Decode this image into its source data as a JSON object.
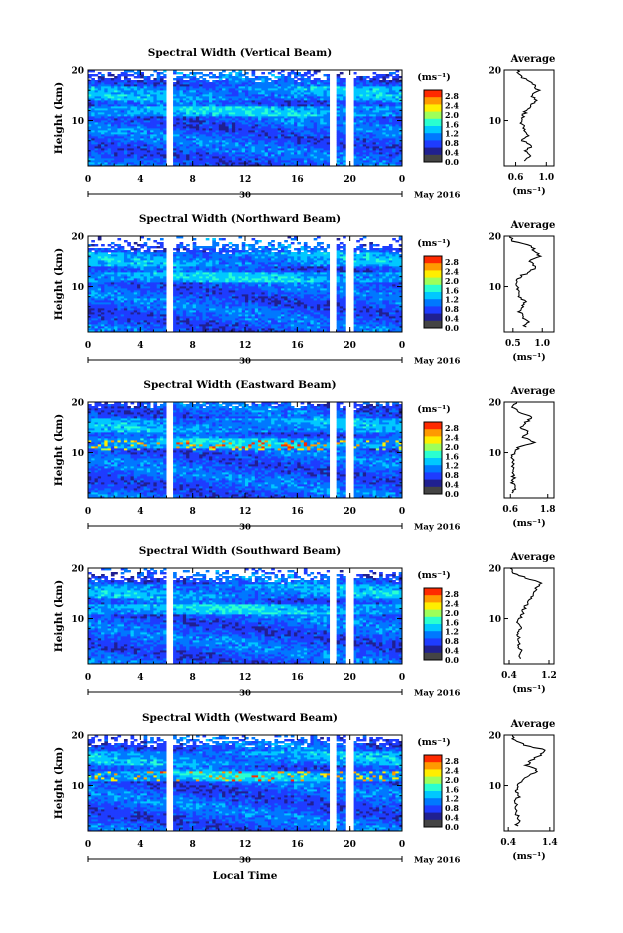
{
  "colorbar": {
    "unit": "(ms⁻¹)",
    "ticks": [
      "2.8",
      "2.4",
      "2.0",
      "1.6",
      "1.2",
      "0.8",
      "0.4",
      "0.0"
    ],
    "colors": [
      "#ff2a00",
      "#ff9a00",
      "#ffee00",
      "#9eff5a",
      "#2affd0",
      "#00c8ff",
      "#0078ff",
      "#1e3cff",
      "#202090",
      "#444444"
    ]
  },
  "shared_axes": {
    "time_ticks": [
      "0",
      "4",
      "8",
      "12",
      "16",
      "20",
      "0"
    ],
    "day_label": "30",
    "month_label": "May 2016",
    "xlabel": "Local Time",
    "ylabel": "Height (km)",
    "height_ticks": [
      "20",
      "10"
    ],
    "avg_title": "Average",
    "avg_xlabel": "(ms⁻¹)"
  },
  "chart_data": [
    {
      "type": "heatmap",
      "title": "Spectral Width (Vertical Beam)",
      "xlabel": "Local Time",
      "ylabel": "Height (km)",
      "xlim": [
        0,
        24
      ],
      "ylim": [
        1,
        20
      ],
      "xticks": [
        0,
        4,
        8,
        12,
        16,
        20,
        24
      ],
      "data_gaps_hours": [
        [
          6.0,
          6.5
        ],
        [
          18.5,
          19.0
        ],
        [
          19.7,
          20.3
        ]
      ],
      "clim": [
        0,
        3.0
      ],
      "profile": {
        "title": "Average",
        "xticks": [
          "0.6",
          "1.0"
        ],
        "xlim": [
          0.45,
          1.1
        ],
        "heights": [
          2,
          3,
          4,
          5,
          6,
          7,
          8,
          9,
          10,
          11,
          12,
          13,
          14,
          15,
          16,
          17,
          18,
          19,
          20
        ],
        "values": [
          0.72,
          0.8,
          0.74,
          0.82,
          0.68,
          0.76,
          0.72,
          0.7,
          0.66,
          0.7,
          0.74,
          0.8,
          0.86,
          0.82,
          0.9,
          0.84,
          0.76,
          0.64,
          0.62
        ]
      }
    },
    {
      "type": "heatmap",
      "title": "Spectral Width (Northward Beam)",
      "xlabel": "Local Time",
      "ylabel": "Height (km)",
      "xlim": [
        0,
        24
      ],
      "ylim": [
        1,
        20
      ],
      "xticks": [
        0,
        4,
        8,
        12,
        16,
        20,
        24
      ],
      "data_gaps_hours": [
        [
          6.0,
          6.5
        ],
        [
          18.5,
          19.0
        ],
        [
          19.7,
          20.3
        ]
      ],
      "clim": [
        0,
        3.0
      ],
      "profile": {
        "title": "Average",
        "xticks": [
          "0.5",
          "1.0"
        ],
        "xlim": [
          0.35,
          1.2
        ],
        "heights": [
          2,
          3,
          4,
          5,
          6,
          7,
          8,
          9,
          10,
          11,
          12,
          13,
          14,
          15,
          16,
          17,
          18,
          19,
          20
        ],
        "values": [
          0.7,
          0.75,
          0.68,
          0.62,
          0.66,
          0.7,
          0.62,
          0.58,
          0.6,
          0.55,
          0.62,
          0.8,
          0.9,
          0.76,
          0.95,
          0.88,
          0.8,
          0.5,
          0.45
        ]
      }
    },
    {
      "type": "heatmap",
      "title": "Spectral Width (Eastward Beam)",
      "xlabel": "Local Time",
      "ylabel": "Height (km)",
      "xlim": [
        0,
        24
      ],
      "ylim": [
        1,
        20
      ],
      "xticks": [
        0,
        4,
        8,
        12,
        16,
        20,
        24
      ],
      "data_gaps_hours": [
        [
          6.0,
          6.5
        ],
        [
          18.5,
          19.0
        ],
        [
          19.7,
          20.3
        ]
      ],
      "clim": [
        0,
        3.0
      ],
      "profile": {
        "title": "Average",
        "xticks": [
          "0.6",
          "1.8"
        ],
        "xlim": [
          0.4,
          2.0
        ],
        "heights": [
          2,
          3,
          4,
          5,
          6,
          7,
          8,
          9,
          10,
          11,
          12,
          13,
          14,
          15,
          16,
          17,
          18,
          19,
          20
        ],
        "values": [
          0.7,
          0.75,
          0.68,
          0.72,
          0.65,
          0.7,
          0.68,
          0.66,
          0.7,
          0.85,
          1.4,
          1.0,
          1.2,
          0.9,
          1.1,
          1.3,
          0.9,
          0.7,
          0.8
        ]
      }
    },
    {
      "type": "heatmap",
      "title": "Spectral Width (Southward Beam)",
      "xlabel": "Local Time",
      "ylabel": "Height (km)",
      "xlim": [
        0,
        24
      ],
      "ylim": [
        1,
        20
      ],
      "xticks": [
        0,
        4,
        8,
        12,
        16,
        20,
        24
      ],
      "data_gaps_hours": [
        [
          6.0,
          6.5
        ],
        [
          18.5,
          19.0
        ],
        [
          19.7,
          20.3
        ]
      ],
      "clim": [
        0,
        3.0
      ],
      "profile": {
        "title": "Average",
        "xticks": [
          "0.4",
          "1.2"
        ],
        "xlim": [
          0.3,
          1.3
        ],
        "heights": [
          2,
          3,
          4,
          5,
          6,
          7,
          8,
          9,
          10,
          11,
          12,
          13,
          14,
          15,
          16,
          17,
          18,
          19,
          20
        ],
        "values": [
          0.6,
          0.65,
          0.62,
          0.58,
          0.6,
          0.55,
          0.65,
          0.58,
          0.62,
          0.66,
          0.7,
          0.78,
          0.82,
          0.9,
          0.95,
          1.05,
          0.75,
          0.5,
          0.42
        ]
      }
    },
    {
      "type": "heatmap",
      "title": "Spectral Width (Westward Beam)",
      "xlabel": "Local Time",
      "ylabel": "Height (km)",
      "xlim": [
        0,
        24
      ],
      "ylim": [
        1,
        20
      ],
      "xticks": [
        0,
        4,
        8,
        12,
        16,
        20,
        24
      ],
      "data_gaps_hours": [
        [
          6.0,
          6.5
        ],
        [
          18.5,
          19.0
        ],
        [
          19.7,
          20.3
        ]
      ],
      "clim": [
        0,
        3.0
      ],
      "profile": {
        "title": "Average",
        "xticks": [
          "0.4",
          "1.4"
        ],
        "xlim": [
          0.3,
          1.5
        ],
        "heights": [
          2,
          3,
          4,
          5,
          6,
          7,
          8,
          9,
          10,
          11,
          12,
          13,
          14,
          15,
          16,
          17,
          18,
          19,
          20
        ],
        "values": [
          0.6,
          0.65,
          0.62,
          0.6,
          0.62,
          0.58,
          0.66,
          0.6,
          0.64,
          0.72,
          0.9,
          1.1,
          0.85,
          0.95,
          1.15,
          1.3,
          0.8,
          0.55,
          0.5
        ]
      }
    }
  ]
}
